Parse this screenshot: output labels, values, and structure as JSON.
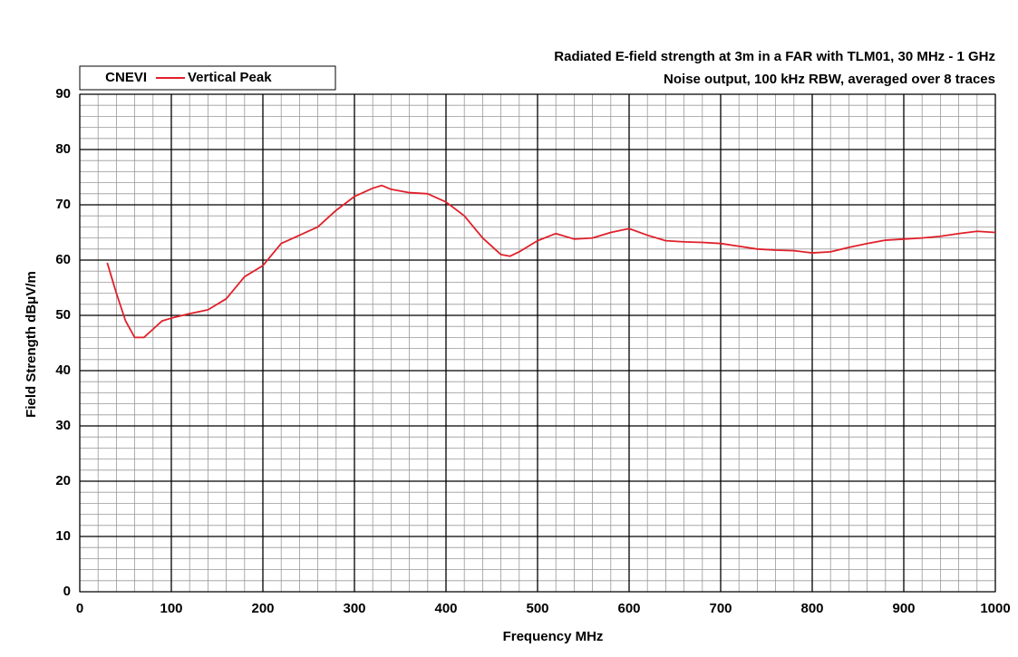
{
  "chart_data": {
    "type": "line",
    "title": [
      "Radiated E-field strength at 3m in a FAR with  TLM01, 30 MHz - 1 GHz",
      "Noise  output, 100 kHz RBW, averaged over 8 traces"
    ],
    "legend_title": "CNEVI",
    "x_label": "Frequency MHz",
    "y_label": "Field Strength dBμV/m",
    "x": [
      30,
      40,
      50,
      60,
      70,
      80,
      90,
      100,
      120,
      140,
      160,
      180,
      200,
      220,
      240,
      260,
      280,
      300,
      320,
      330,
      340,
      360,
      380,
      400,
      420,
      440,
      460,
      470,
      480,
      500,
      520,
      540,
      560,
      580,
      600,
      620,
      640,
      660,
      680,
      700,
      720,
      740,
      760,
      780,
      800,
      820,
      840,
      860,
      880,
      900,
      920,
      940,
      960,
      980,
      1000
    ],
    "series": [
      {
        "name": "Vertical Peak",
        "color": "#e0202a",
        "values": [
          59.5,
          54,
          49,
          46,
          46,
          47.5,
          49,
          49.5,
          50.3,
          51,
          53,
          57,
          59,
          63,
          64.5,
          66,
          69,
          71.5,
          73,
          73.5,
          72.8,
          72.2,
          72,
          70.5,
          68,
          64,
          61,
          60.7,
          61.5,
          63.5,
          64.8,
          63.8,
          64,
          65,
          65.7,
          64.5,
          63.5,
          63.3,
          63.2,
          63,
          62.5,
          62,
          61.8,
          61.7,
          61.3,
          61.5,
          62.3,
          63,
          63.6,
          63.8,
          64,
          64.3,
          64.8,
          65.2,
          65
        ]
      }
    ],
    "xlim": [
      0,
      1000
    ],
    "xticks": [
      0,
      100,
      200,
      300,
      400,
      500,
      600,
      700,
      800,
      900,
      1000
    ],
    "ylim": [
      0,
      90
    ],
    "yticks": [
      0,
      10,
      20,
      30,
      40,
      50,
      60,
      70,
      80,
      90
    ],
    "grid": true,
    "minor_grid_divisions": 5,
    "legend": "upper left"
  }
}
